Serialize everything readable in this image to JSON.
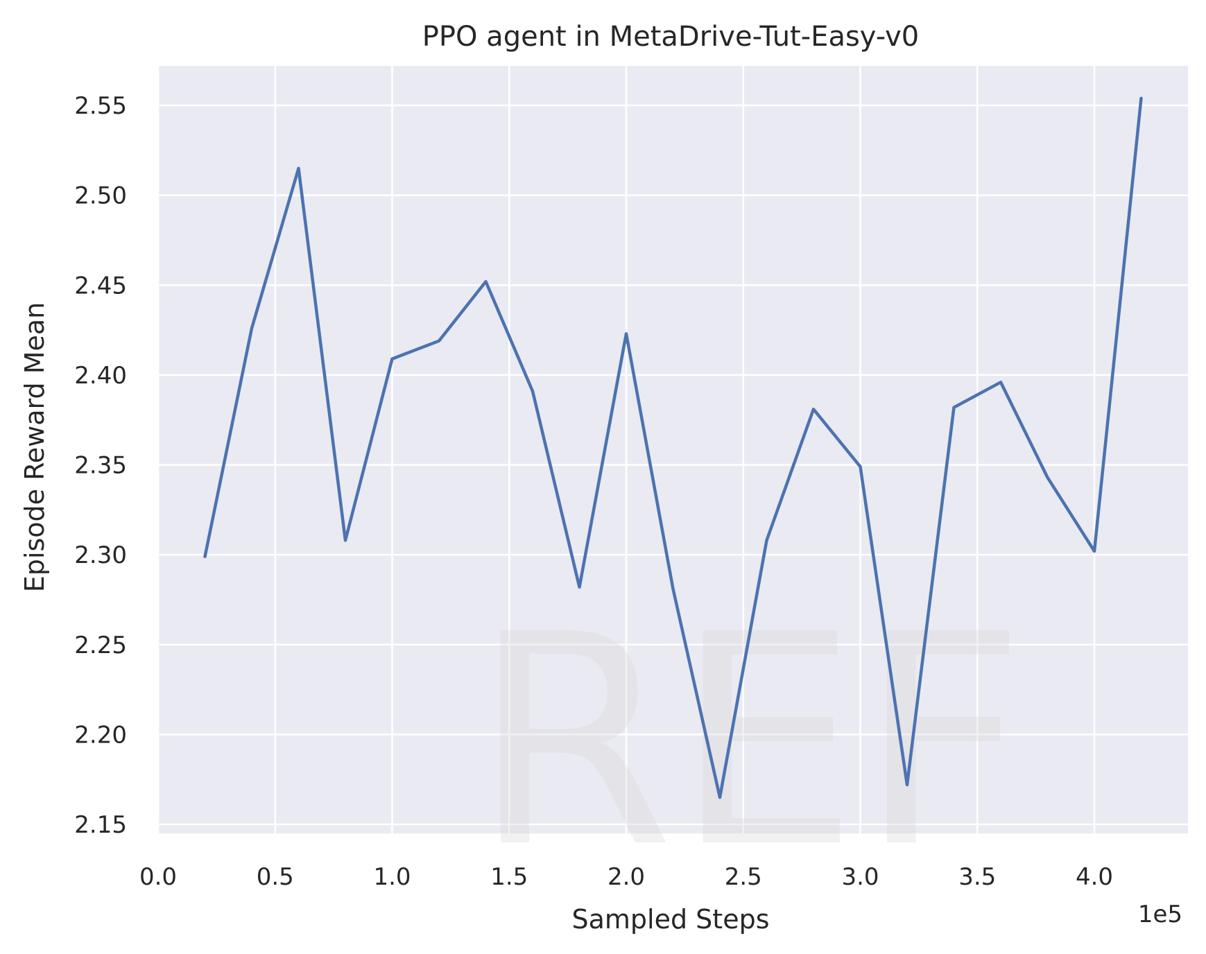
{
  "chart_data": {
    "type": "line",
    "title": "PPO agent in MetaDrive-Tut-Easy-v0",
    "xlabel": "Sampled Steps",
    "ylabel": "Episode Reward Mean",
    "x_offset_label": "1e5",
    "x_scale": 100000,
    "xlim": [
      0,
      440000
    ],
    "ylim": [
      2.145,
      2.572
    ],
    "x_ticks": [
      0,
      50000,
      100000,
      150000,
      200000,
      250000,
      300000,
      350000,
      400000
    ],
    "x_tick_labels": [
      "0.0",
      "0.5",
      "1.0",
      "1.5",
      "2.0",
      "2.5",
      "3.0",
      "3.5",
      "4.0"
    ],
    "y_ticks": [
      2.15,
      2.2,
      2.25,
      2.3,
      2.35,
      2.4,
      2.45,
      2.5,
      2.55
    ],
    "y_tick_labels": [
      "2.15",
      "2.20",
      "2.25",
      "2.30",
      "2.35",
      "2.40",
      "2.45",
      "2.50",
      "2.55"
    ],
    "grid": true,
    "background_color": "#eaeaf2",
    "grid_color": "#ffffff",
    "watermark": "REF",
    "series": [
      {
        "color": "#4c72b0",
        "x": [
          20000,
          40000,
          60000,
          80000,
          100000,
          120000,
          140000,
          160000,
          180000,
          200000,
          220000,
          240000,
          260000,
          280000,
          300000,
          320000,
          340000,
          360000,
          380000,
          400000,
          420000
        ],
        "y": [
          2.299,
          2.426,
          2.515,
          2.308,
          2.409,
          2.419,
          2.452,
          2.391,
          2.282,
          2.423,
          2.281,
          2.165,
          2.308,
          2.381,
          2.349,
          2.172,
          2.382,
          2.396,
          2.343,
          2.302,
          2.554
        ]
      }
    ]
  }
}
